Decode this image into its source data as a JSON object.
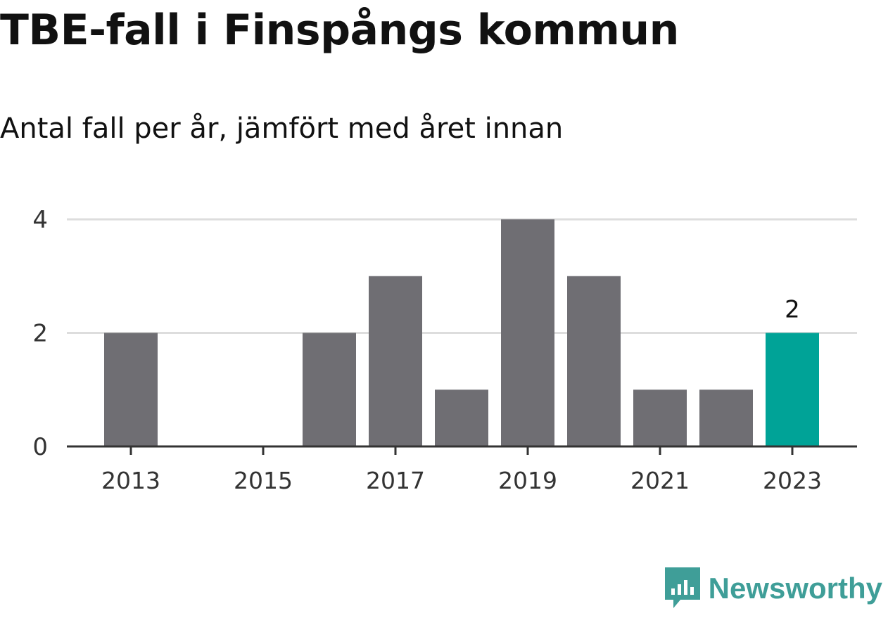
{
  "header": {
    "title": "TBE-fall i Finspångs kommun",
    "subtitle": "Antal fall per år, jämfört med året innan"
  },
  "chart_data": {
    "type": "bar",
    "title": "TBE-fall i Finspångs kommun",
    "subtitle": "Antal fall per år, jämfört med året innan",
    "xlabel": "",
    "ylabel": "",
    "categories": [
      "2013",
      "2014",
      "2015",
      "2016",
      "2017",
      "2018",
      "2019",
      "2020",
      "2021",
      "2022",
      "2023"
    ],
    "values": [
      2,
      0,
      0,
      2,
      3,
      1,
      4,
      3,
      1,
      1,
      2
    ],
    "highlight_index": 10,
    "highlight_label": "2",
    "x_tick_labels": [
      "2013",
      "2015",
      "2017",
      "2019",
      "2021",
      "2023"
    ],
    "y_ticks": [
      "0",
      "2",
      "4"
    ],
    "ylim": [
      0,
      4
    ],
    "grid": true,
    "colors": {
      "bar": "#6f6e73",
      "highlight": "#00a397",
      "grid": "#dddddd",
      "axis": "#333333"
    }
  },
  "footer": {
    "brand": "Newsworthy",
    "brand_color": "#3f9e98",
    "brand_icon": "newsworthy-logo-icon"
  }
}
